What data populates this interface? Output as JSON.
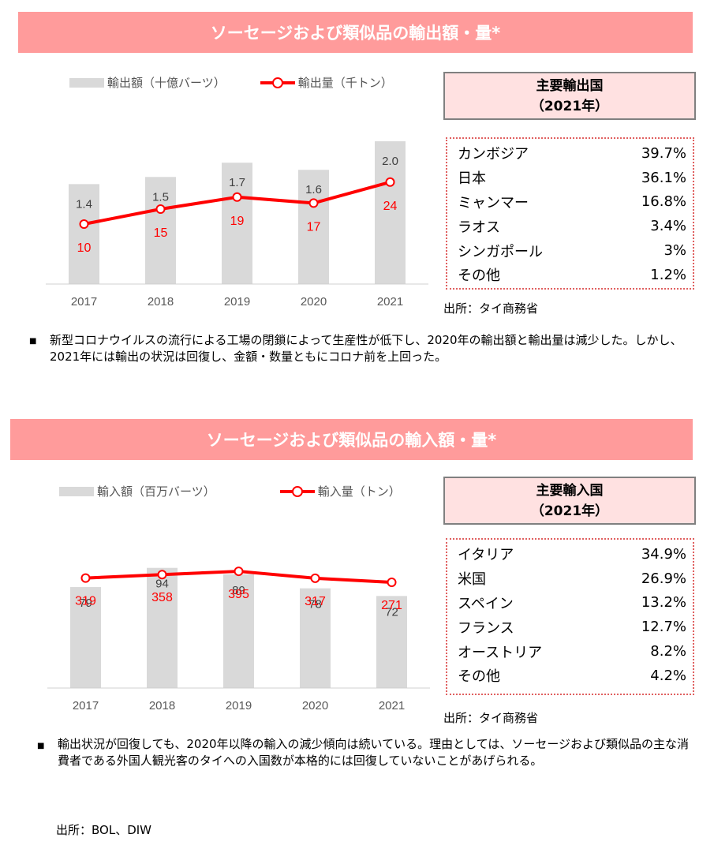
{
  "export_section": {
    "title": "ソーセージおよび類似品の輸出額・量*",
    "legend_bar": "輸出額（十億バーツ）",
    "legend_line": "輸出量（千トン）",
    "top_countries": {
      "title_line1": "主要輸出国",
      "title_line2": "（2021年）",
      "rows": [
        {
          "name": "カンボジア",
          "value": "39.7%"
        },
        {
          "name": "日本",
          "value": "36.1%"
        },
        {
          "name": "ミャンマー",
          "value": "16.8%"
        },
        {
          "name": "ラオス",
          "value": "3.4%"
        },
        {
          "name": "シンガポール",
          "value": "3%"
        },
        {
          "name": "その他",
          "value": "1.2%"
        }
      ]
    },
    "source": "出所：タイ商務省",
    "note": "新型コロナウイルスの流行による工場の閉鎖によって生産性が低下し、2020年の輸出額と輸出量は減少した。しかし、2021年には輸出の状況は回復し、金額・数量ともにコロナ前を上回った。"
  },
  "import_section": {
    "title": "ソーセージおよび類似品の輸入額・量*",
    "legend_bar": "輸入額（百万バーツ）",
    "legend_line": "輸入量（トン）",
    "top_countries": {
      "title_line1": "主要輸入国",
      "title_line2": "（2021年）",
      "rows": [
        {
          "name": "イタリア",
          "value": "34.9%"
        },
        {
          "name": "米国",
          "value": "26.9%"
        },
        {
          "name": "スペイン",
          "value": "13.2%"
        },
        {
          "name": "フランス",
          "value": "12.7%"
        },
        {
          "name": "オーストリア",
          "value": "8.2%"
        },
        {
          "name": "その他",
          "value": "4.2%"
        }
      ]
    },
    "source": "出所：タイ商務省",
    "note": "輸出状況が回復しても、2020年以降の輸入の減少傾向は続いている。理由としては、ソーセージおよび類似品の主な消費者である外国人観光客のタイへの入国数が本格的には回復していないことがあげられる。"
  },
  "footer_source": "出所：BOL、DIW",
  "chart_data": [
    {
      "type": "bar",
      "categories": [
        "2017",
        "2018",
        "2019",
        "2020",
        "2021"
      ],
      "series": [
        {
          "name": "輸出額（十億バーツ）",
          "type": "bar",
          "values": [
            1.4,
            1.5,
            1.7,
            1.6,
            2.0
          ],
          "labels": [
            "1.4",
            "1.5",
            "1.7",
            "1.6",
            "2.0"
          ],
          "color": "#d9d9d9"
        },
        {
          "name": "輸出量（千トン）",
          "type": "line",
          "values": [
            10,
            15,
            19,
            17,
            24
          ],
          "labels": [
            "10",
            "15",
            "19",
            "17",
            "24"
          ],
          "color": "#ff0000"
        }
      ],
      "ylim_bar": [
        0,
        2.1
      ],
      "ylim_line": [
        -10,
        40
      ],
      "grid": false
    },
    {
      "type": "bar",
      "categories": [
        "2017",
        "2018",
        "2019",
        "2020",
        "2021"
      ],
      "series": [
        {
          "name": "輸入額（百万バーツ）",
          "type": "bar",
          "values": [
            79,
            94,
            89,
            78,
            72
          ],
          "labels": [
            "79",
            "94",
            "89",
            "78",
            "72"
          ],
          "color": "#d9d9d9"
        },
        {
          "name": "輸入量（トン）",
          "type": "line",
          "values": [
            319,
            358,
            395,
            317,
            271
          ],
          "labels": [
            "319",
            "358",
            "395",
            "317",
            "271"
          ],
          "color": "#ff0000"
        }
      ],
      "ylim_bar": [
        0,
        100
      ],
      "ylim_line": [
        -920,
        520
      ],
      "grid": false
    }
  ]
}
